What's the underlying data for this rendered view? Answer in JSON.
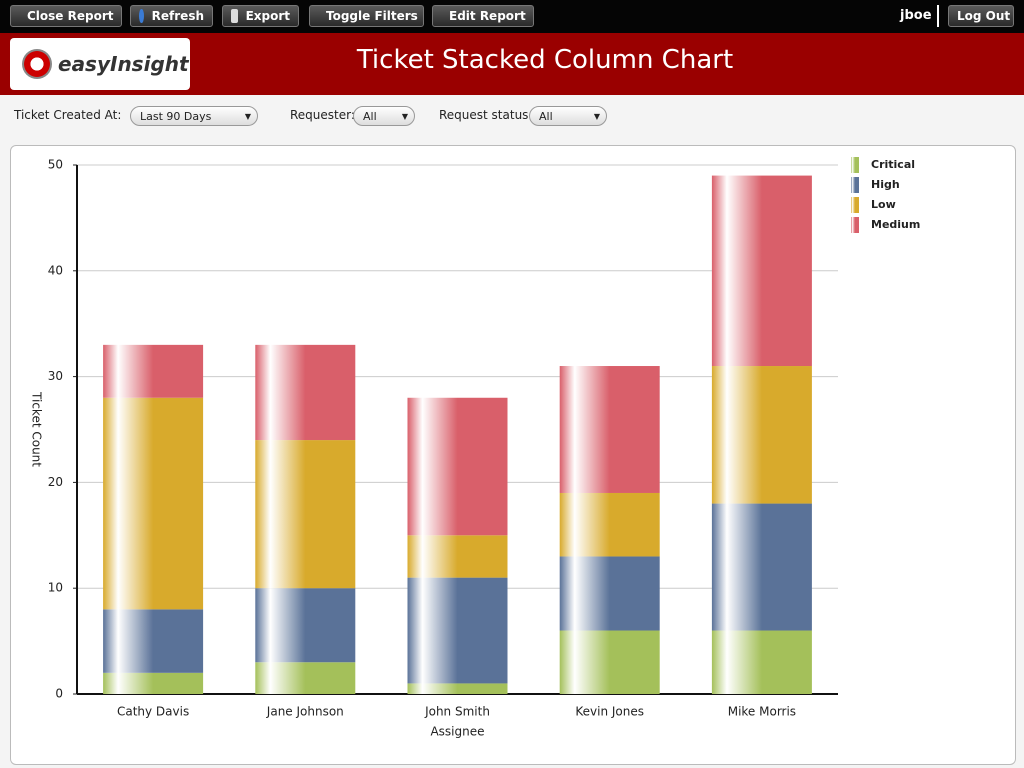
{
  "toolbar": {
    "buttons": [
      "Close Report",
      "Refresh",
      "Export",
      "Toggle Filters",
      "Edit Report"
    ],
    "user": "jboe",
    "logout": "Log Out"
  },
  "header": {
    "logo": "easyInsight",
    "title": "Ticket Stacked Column Chart"
  },
  "filters": [
    {
      "label": "Ticket Created At:",
      "value": "Last 90 Days"
    },
    {
      "label": "Requester:",
      "value": "All"
    },
    {
      "label": "Request status:",
      "value": "All"
    }
  ],
  "chart_data": {
    "type": "bar",
    "stacked": true,
    "xlabel": "Assignee",
    "ylabel": "Ticket Count",
    "categories": [
      "Cathy Davis",
      "Jane Johnson",
      "John Smith",
      "Kevin Jones",
      "Mike Morris"
    ],
    "series": [
      {
        "name": "Critical",
        "color": "#a4c05a",
        "values": [
          2,
          3,
          1,
          6,
          6
        ]
      },
      {
        "name": "High",
        "color": "#5a7298",
        "values": [
          6,
          7,
          10,
          7,
          12
        ]
      },
      {
        "name": "Low",
        "color": "#d8aa2c",
        "values": [
          20,
          14,
          4,
          6,
          13
        ]
      },
      {
        "name": "Medium",
        "color": "#d95f6a",
        "values": [
          5,
          9,
          13,
          12,
          18
        ]
      }
    ],
    "ylim": [
      0,
      50
    ],
    "yticks": [
      0,
      10,
      20,
      30,
      40,
      50
    ],
    "grid": true,
    "legend": "right"
  }
}
